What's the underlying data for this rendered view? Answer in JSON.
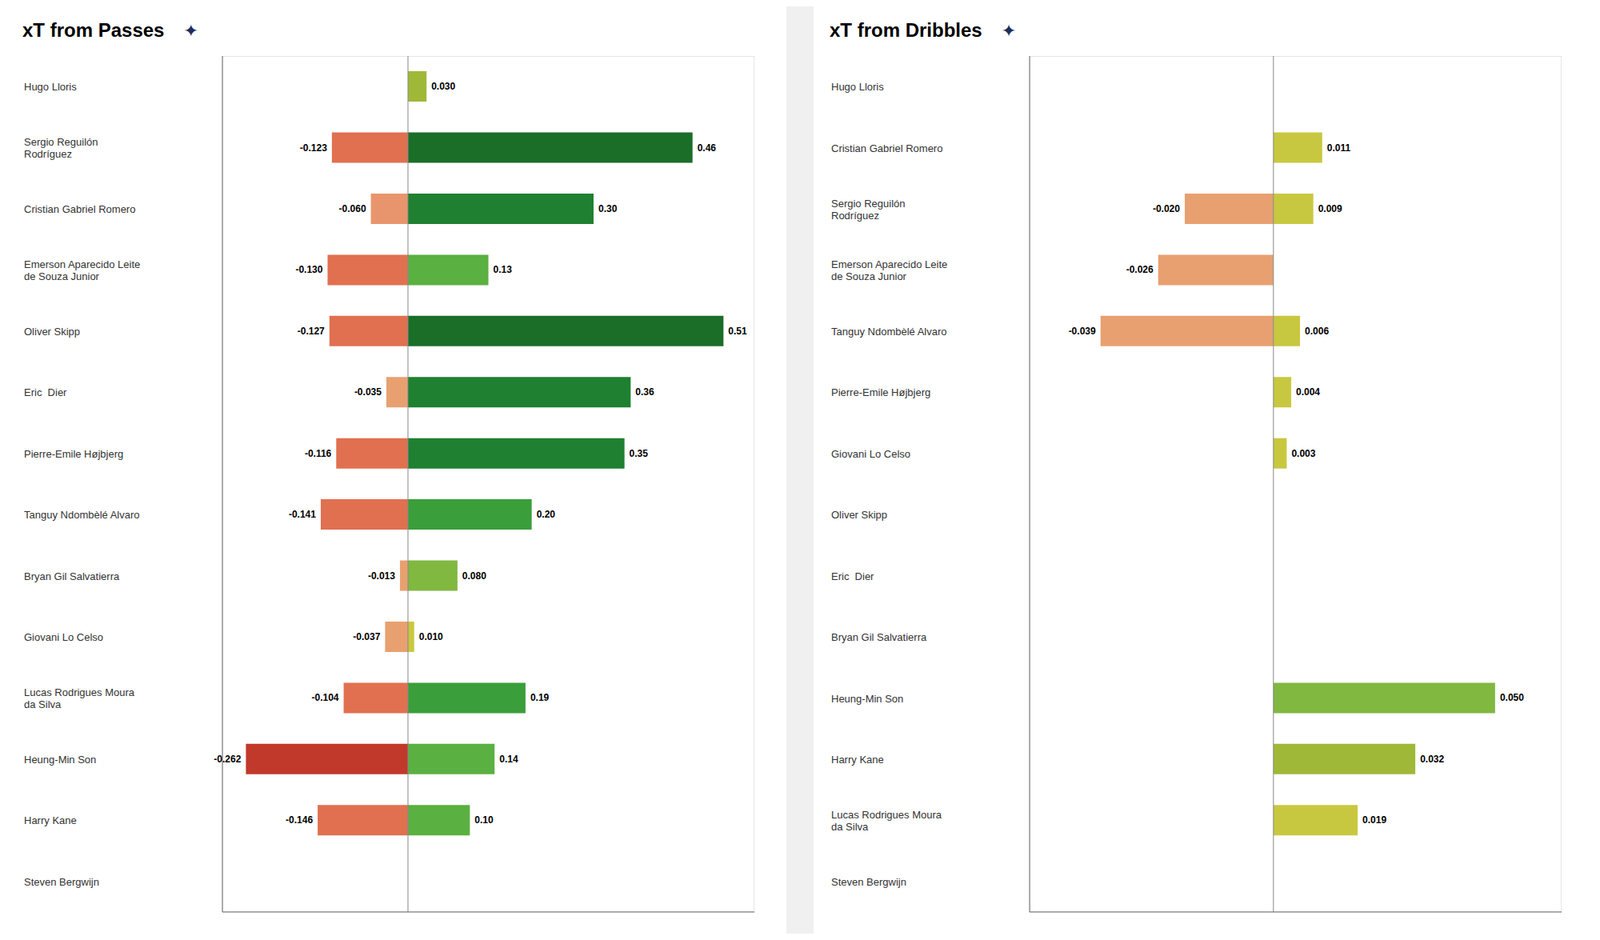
{
  "chart_data": [
    {
      "type": "bar",
      "title": "xT from Passes",
      "annotations": [
        "✦"
      ],
      "orientation": "horizontal",
      "categories": [
        "Hugo Lloris",
        "Sergio Reguilón\nRodríguez",
        "Cristian Gabriel Romero",
        "Emerson Aparecido Leite\nde Souza Junior",
        "Oliver Skipp",
        "Eric  Dier",
        "Pierre-Emile Højbjerg",
        "Tanguy Ndombèlé Alvaro",
        "Bryan Gil Salvatierra",
        "Giovani Lo Celso",
        "Lucas Rodrigues Moura\nda Silva",
        "Heung-Min Son",
        "Harry Kane",
        "Steven Bergwijn"
      ],
      "series": [
        {
          "values": [
            0,
            -0.123,
            -0.06,
            -0.13,
            -0.127,
            -0.035,
            -0.116,
            -0.141,
            -0.013,
            -0.037,
            -0.104,
            -0.262,
            -0.146,
            0
          ],
          "value_labels": [
            "0",
            "-0.123",
            "-0.060",
            "-0.130",
            "-0.127",
            "-0.035",
            "-0.116",
            "-0.141",
            "-0.013",
            "-0.037",
            "-0.104",
            "-0.262",
            "-0.146",
            "0"
          ],
          "colors": [
            "#e8956d",
            "#e07050",
            "#e8956d",
            "#e07050",
            "#e07050",
            "#e8a070",
            "#e07050",
            "#e07050",
            "#e8a070",
            "#e8a070",
            "#e07050",
            "#c0392b",
            "#e07050",
            "#e8956d"
          ]
        },
        {
          "values": [
            0.03,
            0.46,
            0.3,
            0.13,
            0.51,
            0.36,
            0.35,
            0.2,
            0.08,
            0.01,
            0.19,
            0.14,
            0.1,
            0.0
          ],
          "value_labels": [
            "0.030",
            "0.46",
            "0.30",
            "0.13",
            "0.51",
            "0.36",
            "0.35",
            "0.20",
            "0.080",
            "0.010",
            "0.19",
            "0.14",
            "0.10",
            "0"
          ],
          "colors": [
            "#a0b838",
            "#1a6e28",
            "#1e8030",
            "#5ab040",
            "#1a6e28",
            "#1e8030",
            "#1e8030",
            "#3a9e3a",
            "#80b840",
            "#c8c840",
            "#3a9e3a",
            "#5ab040",
            "#5ab040",
            "#c8c840"
          ]
        }
      ],
      "xlim": [
        -0.3,
        0.56
      ],
      "tick_labels": "y",
      "data_labels": true,
      "grid": false
    },
    {
      "type": "bar",
      "title": "xT from Dribbles",
      "annotations": [
        "✦"
      ],
      "orientation": "horizontal",
      "categories": [
        "Hugo Lloris",
        "Cristian Gabriel Romero",
        "Sergio Reguilón\nRodríguez",
        "Emerson Aparecido Leite\nde Souza Junior",
        "Tanguy Ndombèlé Alvaro",
        "Pierre-Emile Højbjerg",
        "Giovani Lo Celso",
        "Oliver Skipp",
        "Eric  Dier",
        "Bryan Gil Salvatierra",
        "Heung-Min Son",
        "Harry Kane",
        "Lucas Rodrigues Moura\nda Silva",
        "Steven Bergwijn"
      ],
      "series": [
        {
          "values": [
            0,
            0,
            -0.02,
            -0.026,
            -0.039,
            0,
            0,
            0,
            0,
            0,
            0,
            0,
            0,
            0
          ],
          "value_labels": [
            "0",
            "0",
            "-0.020",
            "-0.026",
            "-0.039",
            "0",
            "0",
            "0",
            "0",
            "0",
            "0",
            "0",
            "0",
            "0"
          ],
          "colors": [
            "#e8956d",
            "#e8956d",
            "#e8a070",
            "#e8a070",
            "#e8a070",
            "#e8956d",
            "#e8956d",
            "#e8956d",
            "#e8956d",
            "#e8956d",
            "#e8956d",
            "#e8956d",
            "#e8956d",
            "#e8956d"
          ]
        },
        {
          "values": [
            0,
            0.011,
            0.009,
            0,
            0.006,
            0.004,
            0.003,
            0,
            0,
            0,
            0.05,
            0.032,
            0.019,
            0
          ],
          "value_labels": [
            "0",
            "0.011",
            "0.009",
            "0",
            "0.006",
            "0.004",
            "0.003",
            "0",
            "0",
            "0",
            "0.050",
            "0.032",
            "0.019",
            "0"
          ],
          "colors": [
            "#c8c840",
            "#c8c840",
            "#c8c840",
            "#c8c840",
            "#c8c840",
            "#c8c840",
            "#c8c840",
            "#c8c840",
            "#c8c840",
            "#c8c840",
            "#80b840",
            "#a0b838",
            "#c8c840",
            "#c8c840"
          ]
        }
      ],
      "xlim": [
        -0.055,
        0.065
      ],
      "tick_labels": "y",
      "data_labels": true,
      "grid": false
    }
  ]
}
